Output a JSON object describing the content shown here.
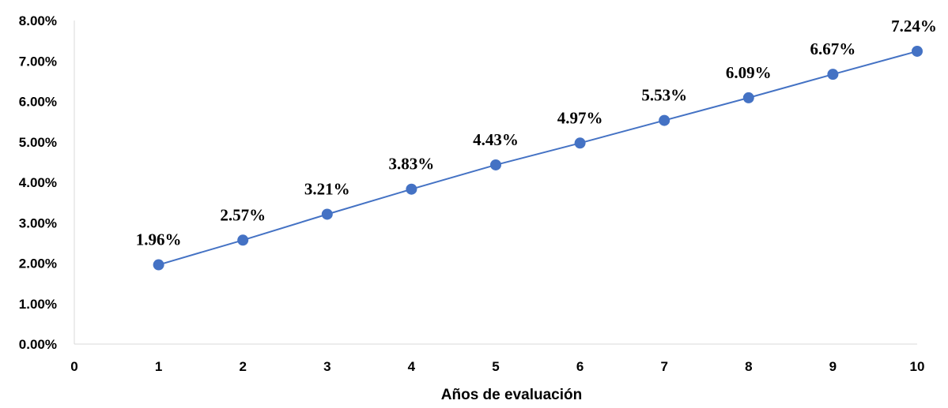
{
  "chart_data": {
    "type": "line",
    "title": "",
    "xlabel": "Años de evaluación",
    "ylabel": "",
    "x": [
      1,
      2,
      3,
      4,
      5,
      6,
      7,
      8,
      9,
      10
    ],
    "series": [
      {
        "values": [
          1.96,
          2.57,
          3.21,
          3.83,
          4.43,
          4.97,
          5.53,
          6.09,
          6.67,
          7.24
        ],
        "labels": [
          "1.96%",
          "2.57%",
          "3.21%",
          "3.83%",
          "4.43%",
          "4.97%",
          "5.53%",
          "6.09%",
          "6.67%",
          "7.24%"
        ],
        "color": "#4472C4"
      }
    ],
    "xlim": [
      0,
      10
    ],
    "ylim": [
      0,
      8
    ],
    "xticks": [
      "0",
      "1",
      "2",
      "3",
      "4",
      "5",
      "6",
      "7",
      "8",
      "9",
      "10"
    ],
    "yticks": [
      "0.00%",
      "1.00%",
      "2.00%",
      "3.00%",
      "4.00%",
      "5.00%",
      "6.00%",
      "7.00%",
      "8.00%"
    ],
    "grid": false,
    "legend": "none"
  }
}
